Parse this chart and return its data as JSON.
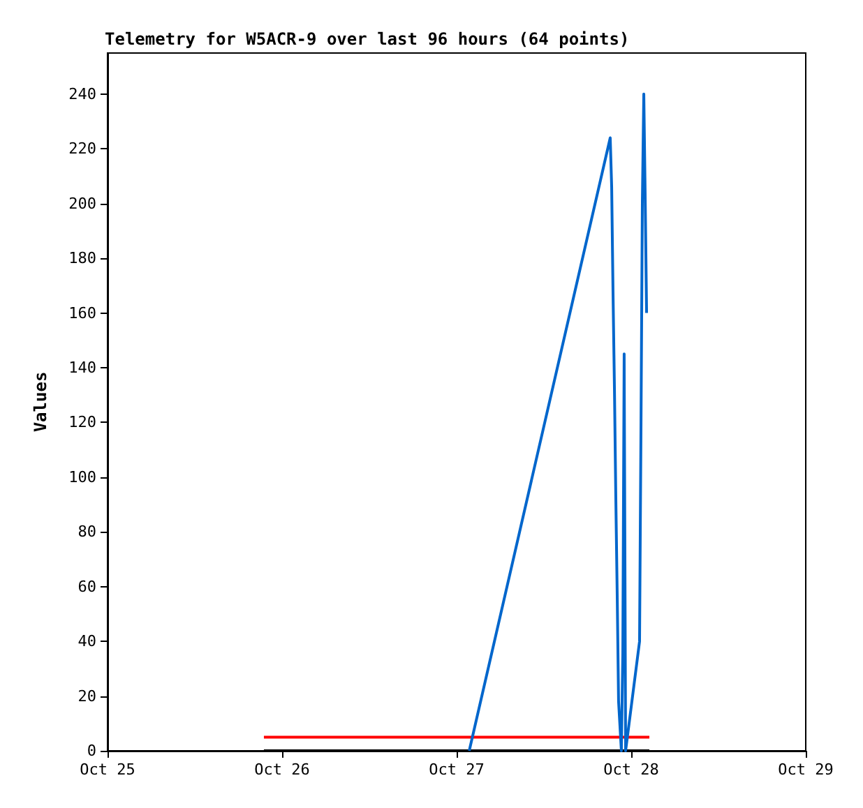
{
  "chart_data": {
    "type": "line",
    "title": "Telemetry for W5ACR-9 over last 96 hours (64 points)",
    "ylabel": "Values",
    "xlim": [
      "--10-25",
      "--10-29"
    ],
    "xticks": [
      {
        "value": "--10-25",
        "label": "Oct 25"
      },
      {
        "value": "--10-26",
        "label": "Oct 26"
      },
      {
        "value": "--10-27",
        "label": "Oct 27"
      },
      {
        "value": "--10-28",
        "label": "Oct 28"
      },
      {
        "value": "--10-29",
        "label": "Oct 29"
      }
    ],
    "ylim": [
      0,
      255
    ],
    "yticks": [
      0,
      20,
      40,
      60,
      80,
      100,
      120,
      140,
      160,
      180,
      200,
      220,
      240
    ],
    "grid": false,
    "marker": "none",
    "line_style": "solid",
    "series": [
      {
        "color": "#000000",
        "x": [
          "--10-25T21:30",
          "--10-28T02:30"
        ],
        "values": [
          0,
          0
        ]
      },
      {
        "color": "#ff0000",
        "x": [
          "--10-25T21:30",
          "--10-28T02:30"
        ],
        "values": [
          5,
          5
        ]
      },
      {
        "color": "#0066cc",
        "x": [
          "--10-27T01:44",
          "--10-27T21:07",
          "--10-27T21:19",
          "--10-27T21:30",
          "--10-27T21:42",
          "--10-27T21:53",
          "--10-27T22:05",
          "--10-27T22:16",
          "--10-27T22:39",
          "--10-27T22:51",
          "--10-27T23:02",
          "--10-27T23:14",
          "--10-28T01:09",
          "--10-28T01:21",
          "--10-28T01:32",
          "--10-28T01:44",
          "--10-28T01:55",
          "--10-28T02:07"
        ],
        "values": [
          0,
          224,
          206,
          168,
          132,
          93,
          56,
          18,
          0,
          36,
          145,
          0,
          40,
          120,
          200,
          240,
          204,
          160
        ]
      }
    ]
  }
}
